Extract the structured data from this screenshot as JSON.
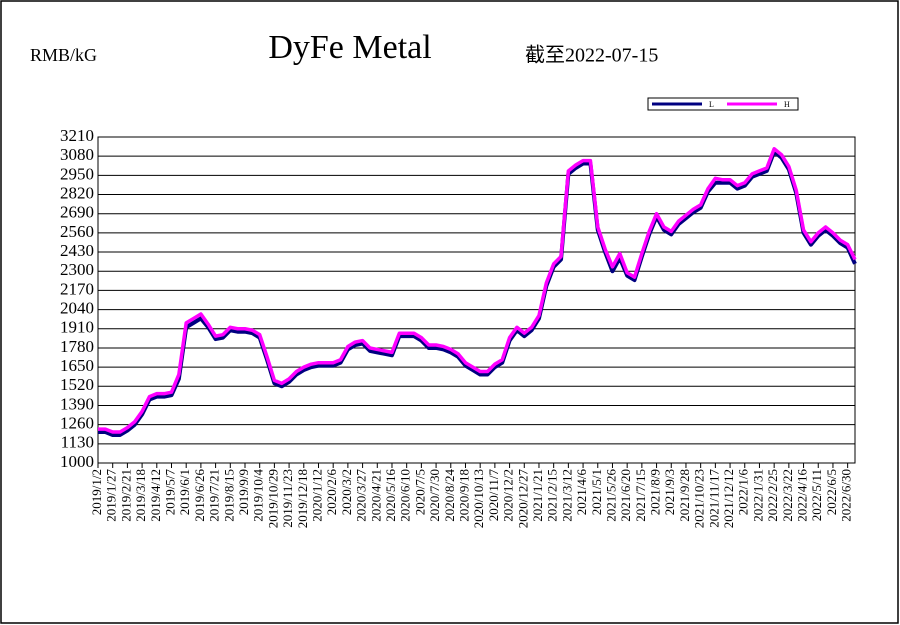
{
  "chart_data": {
    "type": "line",
    "title": "DyFe Metal",
    "y_label": "RMB/kG",
    "subtitle": "截至2022-07-15",
    "categories": [
      "2019/1/2",
      null,
      "2019/1/27",
      null,
      "2019/2/21",
      null,
      "2019/3/18",
      null,
      "2019/4/12",
      null,
      "2019/5/7",
      null,
      "2019/6/1",
      null,
      "2019/6/26",
      null,
      "2019/7/21",
      null,
      "2019/8/15",
      null,
      "2019/9/9",
      null,
      "2019/10/4",
      null,
      "2019/10/29",
      null,
      "2019/11/23",
      null,
      "2019/12/18",
      null,
      "2020/1/12",
      null,
      "2020/2/6",
      null,
      "2020/3/2",
      null,
      "2020/3/27",
      null,
      "2020/4/21",
      null,
      "2020/5/16",
      null,
      "2020/6/10",
      null,
      "2020/7/5",
      null,
      "2020/7/30",
      null,
      "2020/8/24",
      null,
      "2020/9/18",
      null,
      "2020/10/13",
      null,
      "2020/11/7",
      null,
      "2020/12/2",
      null,
      "2020/12/27",
      null,
      "2021/1/21",
      null,
      "2021/2/15",
      null,
      "2021/3/12",
      null,
      "2021/4/6",
      null,
      "2021/5/1",
      null,
      "2021/5/26",
      null,
      "2021/6/20",
      null,
      "2021/7/15",
      null,
      "2021/8/9",
      null,
      "2021/9/3",
      null,
      "2021/9/28",
      null,
      "2021/10/23",
      null,
      "2021/11/17",
      null,
      "2021/12/12",
      null,
      "2022/1/6",
      null,
      "2022/1/31",
      null,
      "2022/2/25",
      null,
      "2022/3/22",
      null,
      "2022/4/16",
      null,
      "2022/5/11",
      null,
      "2022/6/5",
      null,
      "2022/6/30",
      null
    ],
    "series": [
      {
        "name": "L",
        "color": "#000080",
        "values": [
          1210,
          1210,
          1190,
          1190,
          1220,
          1260,
          1330,
          1430,
          1450,
          1450,
          1460,
          1570,
          1920,
          1950,
          1980,
          1920,
          1840,
          1850,
          1900,
          1890,
          1890,
          1880,
          1850,
          1700,
          1540,
          1520,
          1550,
          1600,
          1630,
          1650,
          1660,
          1660,
          1660,
          1680,
          1770,
          1800,
          1810,
          1760,
          1750,
          1740,
          1730,
          1860,
          1860,
          1860,
          1830,
          1780,
          1780,
          1770,
          1750,
          1720,
          1660,
          1630,
          1600,
          1600,
          1650,
          1680,
          1830,
          1900,
          1860,
          1900,
          1980,
          2200,
          2330,
          2380,
          2960,
          3000,
          3030,
          3030,
          2580,
          2430,
          2300,
          2390,
          2270,
          2240,
          2400,
          2550,
          2670,
          2580,
          2550,
          2620,
          2660,
          2700,
          2730,
          2840,
          2900,
          2900,
          2900,
          2860,
          2880,
          2940,
          2960,
          2980,
          3110,
          3070,
          2990,
          2830,
          2560,
          2480,
          2540,
          2580,
          2540,
          2490,
          2460,
          2350
        ]
      },
      {
        "name": "H",
        "color": "#ff00ff",
        "values": [
          1230,
          1230,
          1210,
          1210,
          1240,
          1280,
          1350,
          1450,
          1470,
          1470,
          1480,
          1600,
          1950,
          1980,
          2010,
          1940,
          1860,
          1870,
          1920,
          1910,
          1910,
          1900,
          1870,
          1720,
          1560,
          1540,
          1570,
          1620,
          1650,
          1670,
          1680,
          1680,
          1680,
          1700,
          1790,
          1820,
          1830,
          1780,
          1770,
          1760,
          1750,
          1880,
          1880,
          1880,
          1850,
          1800,
          1800,
          1790,
          1770,
          1740,
          1680,
          1650,
          1620,
          1620,
          1670,
          1700,
          1850,
          1920,
          1880,
          1920,
          2000,
          2220,
          2350,
          2400,
          2980,
          3020,
          3050,
          3050,
          2600,
          2450,
          2330,
          2420,
          2290,
          2260,
          2420,
          2570,
          2690,
          2600,
          2570,
          2640,
          2680,
          2720,
          2750,
          2860,
          2930,
          2920,
          2920,
          2880,
          2900,
          2960,
          2980,
          3000,
          3130,
          3090,
          3010,
          2850,
          2580,
          2500,
          2560,
          2600,
          2560,
          2510,
          2480,
          2380
        ]
      }
    ],
    "ylim": [
      1000,
      3210
    ],
    "yticks": [
      1000,
      1130,
      1260,
      1390,
      1520,
      1650,
      1780,
      1910,
      2040,
      2170,
      2300,
      2430,
      2560,
      2690,
      2820,
      2950,
      3080,
      3210
    ],
    "grid": true,
    "legend": "top-right"
  }
}
